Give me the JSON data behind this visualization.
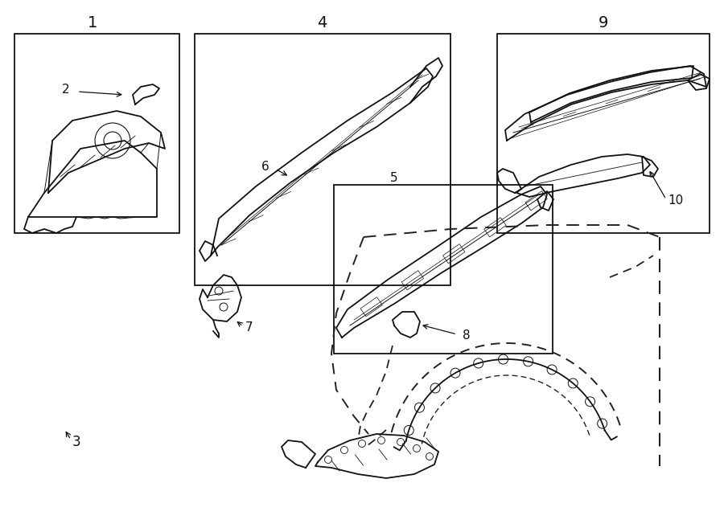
{
  "bg_color": "#ffffff",
  "line_color": "#111111",
  "dash_color": "#222222",
  "fig_width": 9.0,
  "fig_height": 6.62,
  "dpi": 100
}
